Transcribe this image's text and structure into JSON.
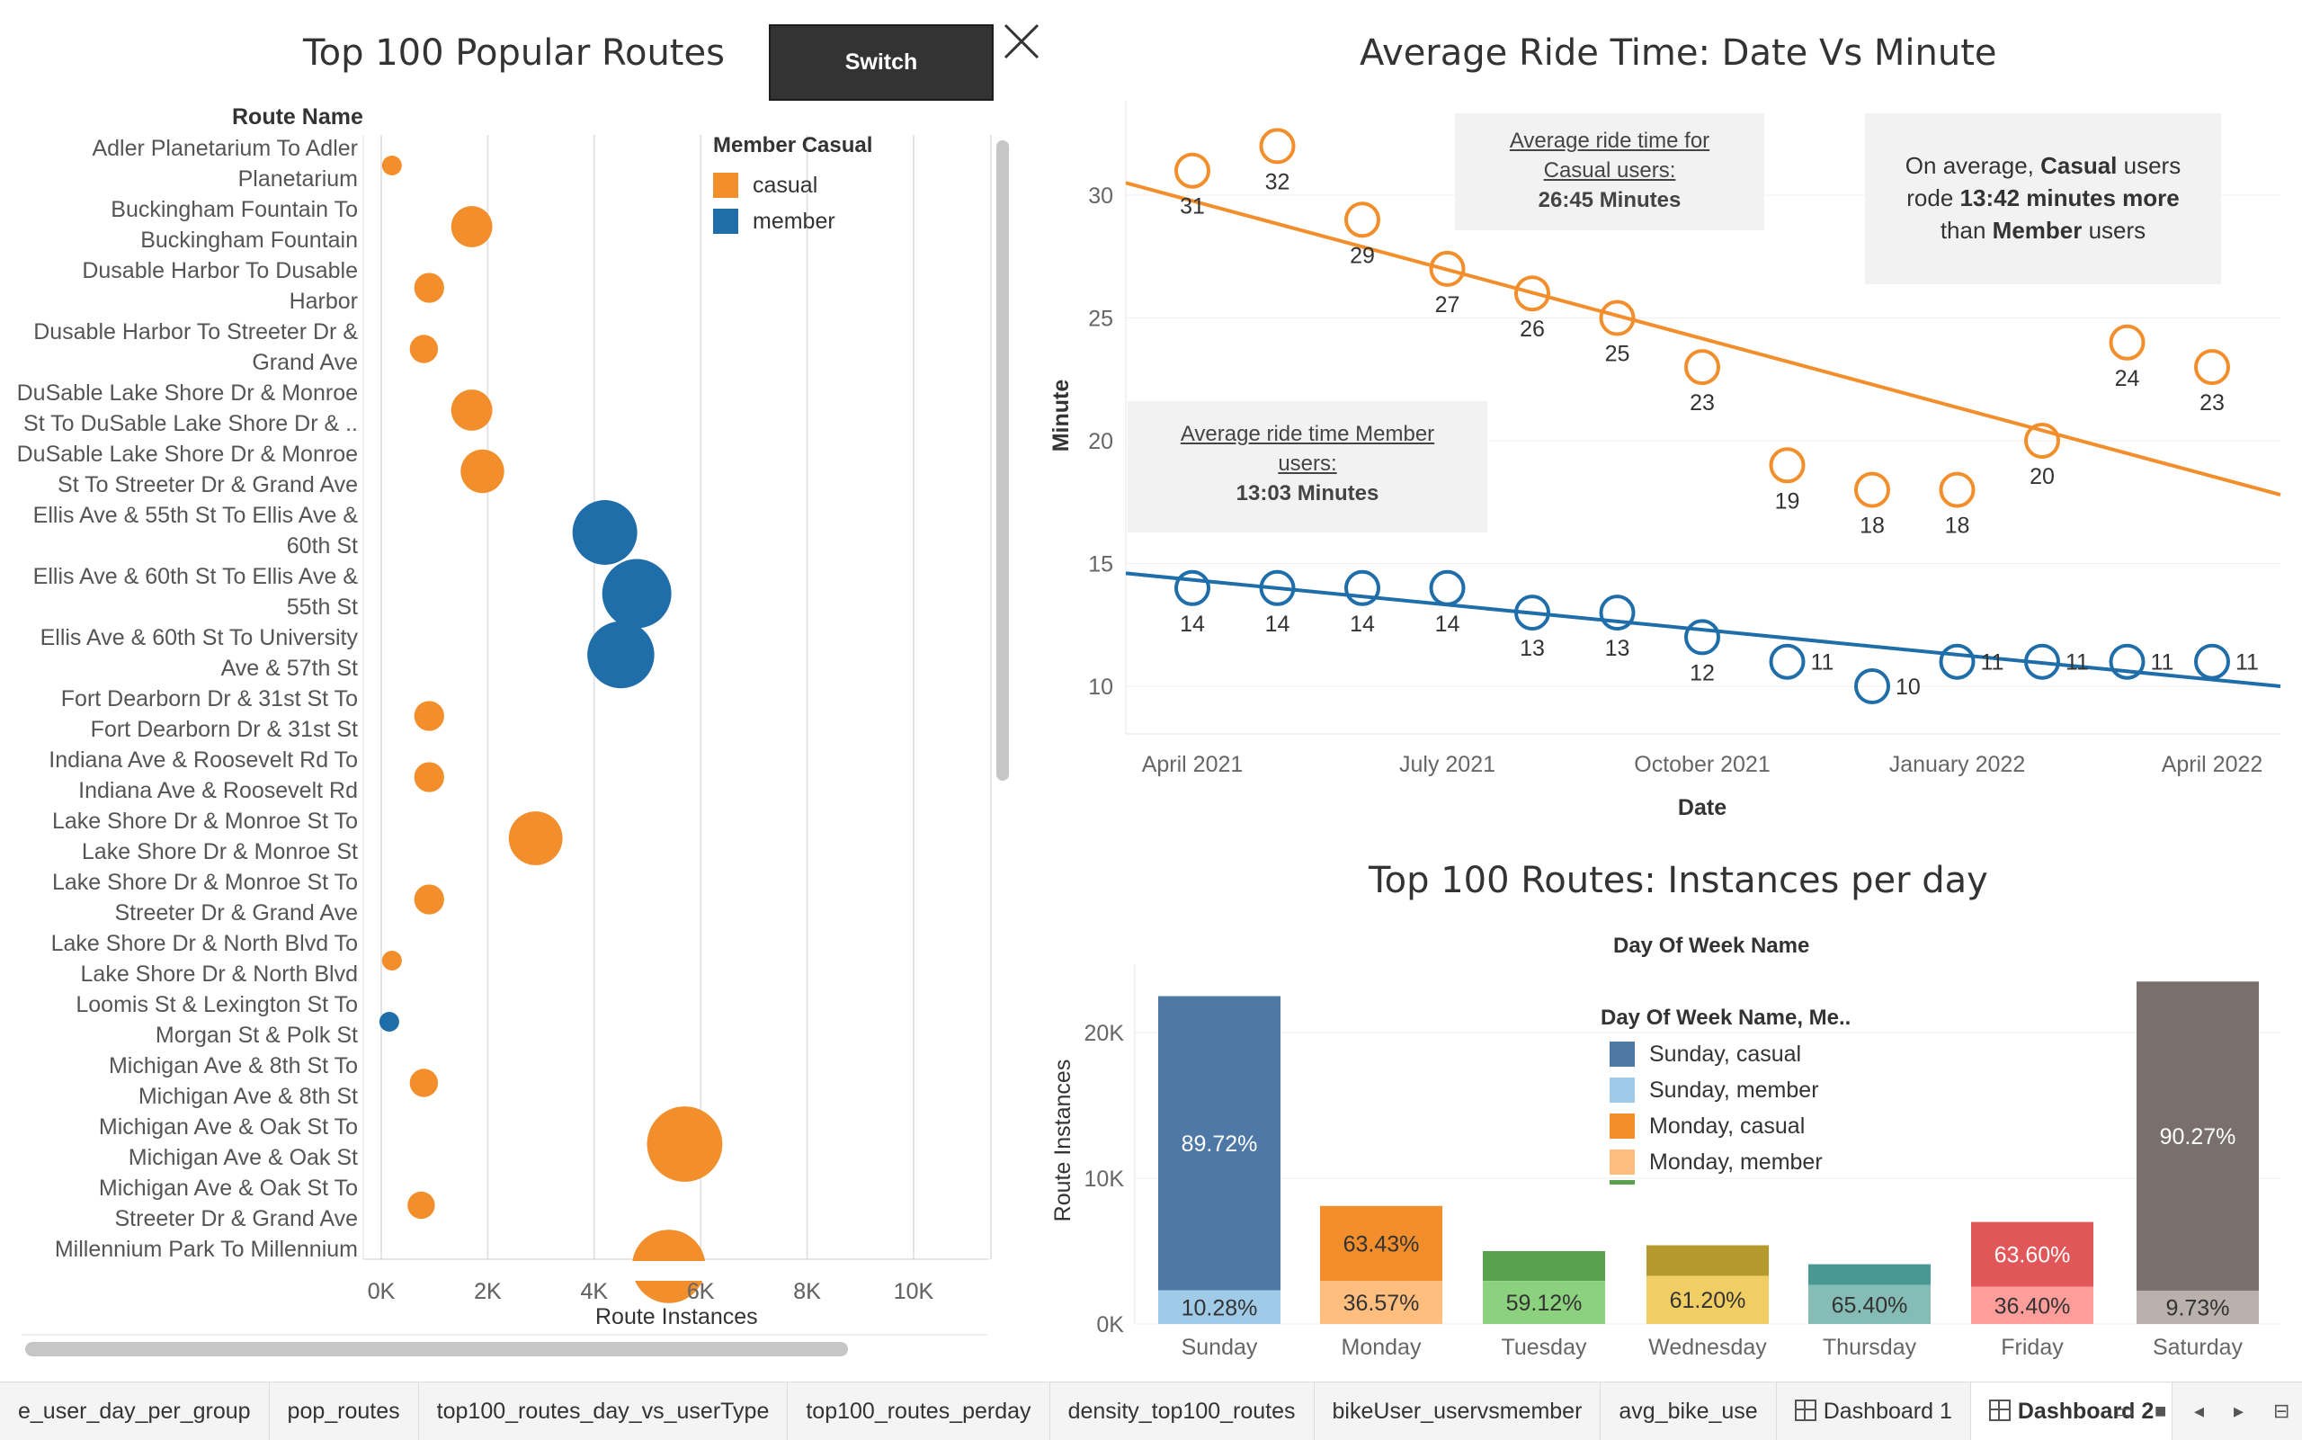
{
  "colors": {
    "casual": "#f28e2b",
    "member": "#1f6eaa",
    "orange_line": "#f28e2b",
    "blue_line": "#1f6eaa"
  },
  "left_panel": {
    "title": "Top 100 Popular Routes",
    "switch_label": "Switch",
    "route_header": "Route Name",
    "x_axis_title": "Route Instances",
    "legend": {
      "title": "Member Casual",
      "items": [
        "casual",
        "member"
      ]
    }
  },
  "line_panel": {
    "title": "Average Ride Time: Date Vs Minute",
    "annot_casual": {
      "line1": "Average ride time for",
      "line2": "Casual users:",
      "value": "26:45 Minutes"
    },
    "annot_member": {
      "line1": "Average ride time Member",
      "line2": "users:",
      "value": "13:03 Minutes"
    },
    "annot_summary": {
      "pre": "On average,",
      "casual": "Casual",
      "mid1": "users",
      "mid2": "rode",
      "diff": "13:42 minutes more",
      "mid3": "than",
      "member": "Member",
      "post": "users"
    }
  },
  "bar_panel": {
    "title": "Top 100 Routes: Instances per day",
    "top_header": "Day Of Week Name",
    "legend_title": "Day Of Week Name, Me..",
    "legend_items": [
      {
        "label": "Sunday, casual",
        "color": "#4e79a7"
      },
      {
        "label": "Sunday, member",
        "color": "#a0cbe8"
      },
      {
        "label": "Monday, casual",
        "color": "#f28e2b"
      },
      {
        "label": "Monday, member",
        "color": "#ffbe7d"
      }
    ]
  },
  "tabs": [
    {
      "label": "e_user_day_per_group",
      "active": false
    },
    {
      "label": "pop_routes",
      "active": false
    },
    {
      "label": "top100_routes_day_vs_userType",
      "active": false
    },
    {
      "label": "top100_routes_perday",
      "active": false
    },
    {
      "label": "density_top100_routes",
      "active": false
    },
    {
      "label": "bikeUser_uservsmember",
      "active": false
    },
    {
      "label": "avg_bike_use",
      "active": false
    },
    {
      "label": "Dashboard 1",
      "active": false,
      "icon": "dashboard-icon"
    },
    {
      "label": "Dashboard 2",
      "active": true,
      "icon": "dashboard-icon"
    }
  ],
  "chart_data": [
    {
      "type": "scatter",
      "title": "Top 100 Popular Routes",
      "xlabel": "Route Instances",
      "ylabel": "Route Name",
      "xlim": [
        0,
        11500
      ],
      "x_ticks": [
        "0K",
        "2K",
        "4K",
        "6K",
        "8K",
        "10K"
      ],
      "legend": [
        "casual",
        "member"
      ],
      "routes": [
        {
          "name": [
            "Adler Planetarium To Adler",
            "Planetarium"
          ],
          "value": 200,
          "type": "casual"
        },
        {
          "name": [
            "Buckingham Fountain To",
            "Buckingham Fountain"
          ],
          "value": 1700,
          "type": "casual"
        },
        {
          "name": [
            "Dusable Harbor To Dusable",
            "Harbor"
          ],
          "value": 900,
          "type": "casual"
        },
        {
          "name": [
            "Dusable Harbor To Streeter Dr &",
            "Grand Ave"
          ],
          "value": 800,
          "type": "casual"
        },
        {
          "name": [
            "DuSable Lake Shore Dr & Monroe",
            "St To DuSable Lake Shore Dr & .."
          ],
          "value": 1700,
          "type": "casual"
        },
        {
          "name": [
            "DuSable Lake Shore Dr & Monroe",
            "St To Streeter Dr & Grand Ave"
          ],
          "value": 1900,
          "type": "casual"
        },
        {
          "name": [
            "Ellis Ave & 55th St To Ellis Ave &",
            "60th St"
          ],
          "value": 4200,
          "type": "member"
        },
        {
          "name": [
            "Ellis Ave & 60th St To Ellis Ave &",
            "55th St"
          ],
          "value": 4800,
          "type": "member"
        },
        {
          "name": [
            "Ellis Ave & 60th St To University",
            "Ave & 57th St"
          ],
          "value": 4500,
          "type": "member"
        },
        {
          "name": [
            "Fort Dearborn Dr & 31st St To",
            "Fort Dearborn Dr & 31st St"
          ],
          "value": 900,
          "type": "casual"
        },
        {
          "name": [
            "Indiana Ave & Roosevelt Rd To",
            "Indiana Ave & Roosevelt Rd"
          ],
          "value": 900,
          "type": "casual"
        },
        {
          "name": [
            "Lake Shore Dr & Monroe St To",
            "Lake Shore Dr & Monroe St"
          ],
          "value": 2900,
          "type": "casual"
        },
        {
          "name": [
            "Lake Shore Dr & Monroe St To",
            "Streeter Dr & Grand Ave"
          ],
          "value": 900,
          "type": "casual"
        },
        {
          "name": [
            "Lake Shore Dr & North Blvd To",
            "Lake Shore Dr & North Blvd"
          ],
          "value": 200,
          "type": "casual"
        },
        {
          "name": [
            "Loomis St & Lexington St To",
            "Morgan St & Polk St"
          ],
          "value": 150,
          "type": "member"
        },
        {
          "name": [
            "Michigan Ave & 8th St To",
            "Michigan Ave & 8th St"
          ],
          "value": 800,
          "type": "casual"
        },
        {
          "name": [
            "Michigan Ave & Oak St To",
            "Michigan Ave & Oak St"
          ],
          "value": 5700,
          "type": "casual"
        },
        {
          "name": [
            "Michigan Ave & Oak St To",
            "Streeter Dr & Grand Ave"
          ],
          "value": 750,
          "type": "casual"
        },
        {
          "name": [
            "Millennium Park To Millennium",
            ""
          ],
          "value": 5400,
          "type": "casual"
        }
      ]
    },
    {
      "type": "line",
      "title": "Average Ride Time: Date Vs Minute",
      "xlabel": "Date",
      "ylabel": "Minute",
      "ylim": [
        8,
        34
      ],
      "y_ticks": [
        10,
        15,
        20,
        25,
        30
      ],
      "x_ticks": [
        "April 2021",
        "July 2021",
        "October 2021",
        "January 2022",
        "April 2022"
      ],
      "x": [
        "2021-04",
        "2021-05",
        "2021-06",
        "2021-07",
        "2021-08",
        "2021-09",
        "2021-10",
        "2021-11",
        "2021-12",
        "2022-01",
        "2022-02",
        "2022-03",
        "2022-04"
      ],
      "series": [
        {
          "name": "casual",
          "values": [
            31,
            32,
            29,
            27,
            26,
            25,
            23,
            19,
            18,
            18,
            20,
            24,
            23
          ],
          "trend": [
            30.5,
            17.8
          ]
        },
        {
          "name": "member",
          "values": [
            14,
            14,
            14,
            14,
            13,
            13,
            12,
            11,
            10,
            11,
            11,
            11,
            11
          ],
          "trend": [
            14.6,
            10.0
          ]
        }
      ]
    },
    {
      "type": "bar",
      "title": "Top 100 Routes: Instances per day",
      "xlabel": "Day Of Week Name",
      "ylabel": "Route Instances",
      "ylim": [
        0,
        25000
      ],
      "y_ticks": [
        "0K",
        "10K",
        "20K"
      ],
      "categories": [
        "Sunday",
        "Monday",
        "Tuesday",
        "Wednesday",
        "Thursday",
        "Friday",
        "Saturday"
      ],
      "totals": [
        22500,
        8100,
        5000,
        5400,
        4100,
        7000,
        23500
      ],
      "casual_pct": [
        "89.72%",
        "63.43%",
        "",
        "",
        "",
        "63.60%",
        "90.27%"
      ],
      "member_pct": [
        "10.28%",
        "36.57%",
        "59.12%",
        "61.20%",
        "65.40%",
        "36.40%",
        "9.73%"
      ],
      "casual_share": [
        0.8972,
        0.6343,
        0.4088,
        0.388,
        0.346,
        0.636,
        0.9027
      ],
      "colors_casual": [
        "#4e79a7",
        "#f28e2b",
        "#59a14f",
        "#b6992d",
        "#499894",
        "#e15759",
        "#79706e"
      ],
      "colors_member": [
        "#a0cbe8",
        "#ffbe7d",
        "#8cd17d",
        "#f1ce63",
        "#86bcb6",
        "#ff9d9a",
        "#bab0ac"
      ]
    }
  ]
}
